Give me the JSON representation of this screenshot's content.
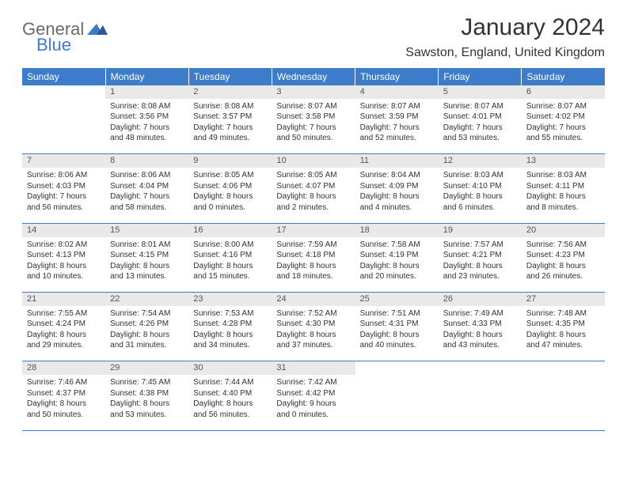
{
  "logo": {
    "general": "General",
    "blue": "Blue"
  },
  "title": "January 2024",
  "location": "Sawston, England, United Kingdom",
  "colors": {
    "header_bg": "#3d7cc9",
    "header_fg": "#ffffff",
    "daynum_bg": "#e9e9e9",
    "row_border": "#3d7cc9",
    "text": "#333333",
    "logo_gray": "#6a6a6a",
    "logo_blue": "#3d7cc9"
  },
  "weekdays": [
    "Sunday",
    "Monday",
    "Tuesday",
    "Wednesday",
    "Thursday",
    "Friday",
    "Saturday"
  ],
  "weeks": [
    {
      "nums": [
        "",
        "1",
        "2",
        "3",
        "4",
        "5",
        "6"
      ],
      "cells": [
        null,
        {
          "sr": "Sunrise: 8:08 AM",
          "ss": "Sunset: 3:56 PM",
          "d1": "Daylight: 7 hours",
          "d2": "and 48 minutes."
        },
        {
          "sr": "Sunrise: 8:08 AM",
          "ss": "Sunset: 3:57 PM",
          "d1": "Daylight: 7 hours",
          "d2": "and 49 minutes."
        },
        {
          "sr": "Sunrise: 8:07 AM",
          "ss": "Sunset: 3:58 PM",
          "d1": "Daylight: 7 hours",
          "d2": "and 50 minutes."
        },
        {
          "sr": "Sunrise: 8:07 AM",
          "ss": "Sunset: 3:59 PM",
          "d1": "Daylight: 7 hours",
          "d2": "and 52 minutes."
        },
        {
          "sr": "Sunrise: 8:07 AM",
          "ss": "Sunset: 4:01 PM",
          "d1": "Daylight: 7 hours",
          "d2": "and 53 minutes."
        },
        {
          "sr": "Sunrise: 8:07 AM",
          "ss": "Sunset: 4:02 PM",
          "d1": "Daylight: 7 hours",
          "d2": "and 55 minutes."
        }
      ]
    },
    {
      "nums": [
        "7",
        "8",
        "9",
        "10",
        "11",
        "12",
        "13"
      ],
      "cells": [
        {
          "sr": "Sunrise: 8:06 AM",
          "ss": "Sunset: 4:03 PM",
          "d1": "Daylight: 7 hours",
          "d2": "and 56 minutes."
        },
        {
          "sr": "Sunrise: 8:06 AM",
          "ss": "Sunset: 4:04 PM",
          "d1": "Daylight: 7 hours",
          "d2": "and 58 minutes."
        },
        {
          "sr": "Sunrise: 8:05 AM",
          "ss": "Sunset: 4:06 PM",
          "d1": "Daylight: 8 hours",
          "d2": "and 0 minutes."
        },
        {
          "sr": "Sunrise: 8:05 AM",
          "ss": "Sunset: 4:07 PM",
          "d1": "Daylight: 8 hours",
          "d2": "and 2 minutes."
        },
        {
          "sr": "Sunrise: 8:04 AM",
          "ss": "Sunset: 4:09 PM",
          "d1": "Daylight: 8 hours",
          "d2": "and 4 minutes."
        },
        {
          "sr": "Sunrise: 8:03 AM",
          "ss": "Sunset: 4:10 PM",
          "d1": "Daylight: 8 hours",
          "d2": "and 6 minutes."
        },
        {
          "sr": "Sunrise: 8:03 AM",
          "ss": "Sunset: 4:11 PM",
          "d1": "Daylight: 8 hours",
          "d2": "and 8 minutes."
        }
      ]
    },
    {
      "nums": [
        "14",
        "15",
        "16",
        "17",
        "18",
        "19",
        "20"
      ],
      "cells": [
        {
          "sr": "Sunrise: 8:02 AM",
          "ss": "Sunset: 4:13 PM",
          "d1": "Daylight: 8 hours",
          "d2": "and 10 minutes."
        },
        {
          "sr": "Sunrise: 8:01 AM",
          "ss": "Sunset: 4:15 PM",
          "d1": "Daylight: 8 hours",
          "d2": "and 13 minutes."
        },
        {
          "sr": "Sunrise: 8:00 AM",
          "ss": "Sunset: 4:16 PM",
          "d1": "Daylight: 8 hours",
          "d2": "and 15 minutes."
        },
        {
          "sr": "Sunrise: 7:59 AM",
          "ss": "Sunset: 4:18 PM",
          "d1": "Daylight: 8 hours",
          "d2": "and 18 minutes."
        },
        {
          "sr": "Sunrise: 7:58 AM",
          "ss": "Sunset: 4:19 PM",
          "d1": "Daylight: 8 hours",
          "d2": "and 20 minutes."
        },
        {
          "sr": "Sunrise: 7:57 AM",
          "ss": "Sunset: 4:21 PM",
          "d1": "Daylight: 8 hours",
          "d2": "and 23 minutes."
        },
        {
          "sr": "Sunrise: 7:56 AM",
          "ss": "Sunset: 4:23 PM",
          "d1": "Daylight: 8 hours",
          "d2": "and 26 minutes."
        }
      ]
    },
    {
      "nums": [
        "21",
        "22",
        "23",
        "24",
        "25",
        "26",
        "27"
      ],
      "cells": [
        {
          "sr": "Sunrise: 7:55 AM",
          "ss": "Sunset: 4:24 PM",
          "d1": "Daylight: 8 hours",
          "d2": "and 29 minutes."
        },
        {
          "sr": "Sunrise: 7:54 AM",
          "ss": "Sunset: 4:26 PM",
          "d1": "Daylight: 8 hours",
          "d2": "and 31 minutes."
        },
        {
          "sr": "Sunrise: 7:53 AM",
          "ss": "Sunset: 4:28 PM",
          "d1": "Daylight: 8 hours",
          "d2": "and 34 minutes."
        },
        {
          "sr": "Sunrise: 7:52 AM",
          "ss": "Sunset: 4:30 PM",
          "d1": "Daylight: 8 hours",
          "d2": "and 37 minutes."
        },
        {
          "sr": "Sunrise: 7:51 AM",
          "ss": "Sunset: 4:31 PM",
          "d1": "Daylight: 8 hours",
          "d2": "and 40 minutes."
        },
        {
          "sr": "Sunrise: 7:49 AM",
          "ss": "Sunset: 4:33 PM",
          "d1": "Daylight: 8 hours",
          "d2": "and 43 minutes."
        },
        {
          "sr": "Sunrise: 7:48 AM",
          "ss": "Sunset: 4:35 PM",
          "d1": "Daylight: 8 hours",
          "d2": "and 47 minutes."
        }
      ]
    },
    {
      "nums": [
        "28",
        "29",
        "30",
        "31",
        "",
        "",
        ""
      ],
      "cells": [
        {
          "sr": "Sunrise: 7:46 AM",
          "ss": "Sunset: 4:37 PM",
          "d1": "Daylight: 8 hours",
          "d2": "and 50 minutes."
        },
        {
          "sr": "Sunrise: 7:45 AM",
          "ss": "Sunset: 4:38 PM",
          "d1": "Daylight: 8 hours",
          "d2": "and 53 minutes."
        },
        {
          "sr": "Sunrise: 7:44 AM",
          "ss": "Sunset: 4:40 PM",
          "d1": "Daylight: 8 hours",
          "d2": "and 56 minutes."
        },
        {
          "sr": "Sunrise: 7:42 AM",
          "ss": "Sunset: 4:42 PM",
          "d1": "Daylight: 9 hours",
          "d2": "and 0 minutes."
        },
        null,
        null,
        null
      ]
    }
  ]
}
